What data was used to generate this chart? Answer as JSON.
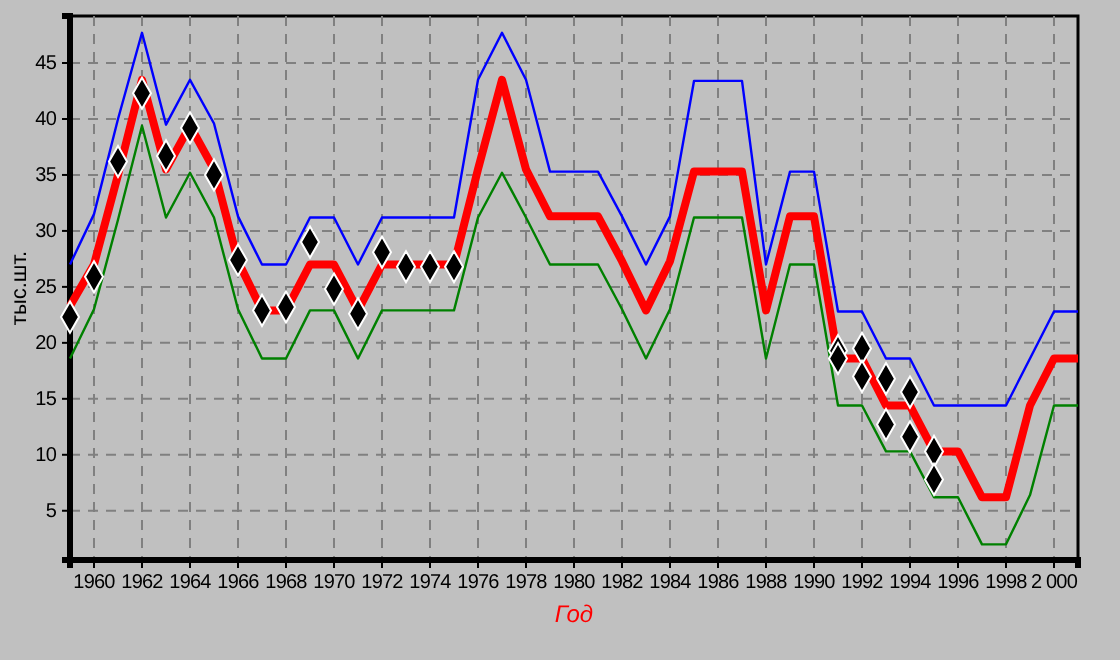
{
  "chart_data": {
    "type": "line",
    "xlabel": "Год",
    "ylabel": "тыс.шт.",
    "x": [
      1959,
      1960,
      1961,
      1962,
      1963,
      1964,
      1965,
      1966,
      1967,
      1968,
      1969,
      1970,
      1971,
      1972,
      1973,
      1974,
      1975,
      1976,
      1977,
      1978,
      1979,
      1980,
      1981,
      1982,
      1983,
      1984,
      1985,
      1986,
      1987,
      1988,
      1989,
      1990,
      1991,
      1992,
      1993,
      1994,
      1995,
      1996,
      1997,
      1998,
      1999,
      2000,
      2001
    ],
    "series": [
      {
        "color": "#0000ff",
        "values": [
          27,
          31.5,
          40,
          47.7,
          39.5,
          43.5,
          39.6,
          31.3,
          27,
          27,
          31.2,
          31.2,
          27,
          31.2,
          31.2,
          31.2,
          31.2,
          43.5,
          47.7,
          43.5,
          35.3,
          35.3,
          35.3,
          31.3,
          27,
          31.3,
          43.4,
          43.4,
          43.4,
          27,
          35.3,
          35.3,
          22.8,
          22.8,
          18.6,
          18.6,
          14.4,
          14.4,
          14.4,
          14.4,
          18.6,
          22.8,
          22.8
        ]
      },
      {
        "color": "#008000",
        "values": [
          18.6,
          23,
          31,
          39.4,
          31.2,
          35.2,
          31.2,
          23,
          18.6,
          18.6,
          22.9,
          22.9,
          18.6,
          22.9,
          22.9,
          22.9,
          22.9,
          31.2,
          35.2,
          31.2,
          27,
          27,
          27,
          23,
          18.6,
          23,
          31.2,
          31.2,
          31.2,
          18.6,
          27,
          27,
          14.4,
          14.4,
          10.3,
          10.3,
          6.2,
          6.2,
          2,
          2,
          6.4,
          14.4,
          14.4
        ]
      },
      {
        "color": "#ff0000",
        "values": [
          23.3,
          27,
          35,
          43.5,
          35.5,
          39.4,
          35.5,
          27.3,
          22.9,
          22.9,
          27,
          27,
          22.9,
          27,
          27,
          27,
          27,
          35.5,
          43.5,
          35.5,
          31.3,
          31.3,
          31.3,
          27.3,
          22.9,
          27.3,
          35.3,
          35.3,
          35.3,
          22.9,
          31.3,
          31.3,
          18.6,
          18.6,
          14.4,
          14.4,
          10.3,
          10.3,
          6.2,
          6.2,
          14.4,
          18.6,
          18.6
        ]
      },
      {
        "type": "scatter",
        "color": "#000000",
        "marker": "diamond",
        "x": [
          1959,
          1960,
          1961,
          1962,
          1963,
          1964,
          1965,
          1966,
          1967,
          1968,
          1969,
          1970,
          1971,
          1972,
          1973,
          1974,
          1975,
          1991,
          1991,
          1992,
          1992,
          1993,
          1993,
          1994,
          1994,
          1995,
          1995
        ],
        "values": [
          22.3,
          25.9,
          36.2,
          42.3,
          36.7,
          39.2,
          35,
          27.4,
          22.9,
          23.2,
          29,
          24.8,
          22.6,
          28.1,
          26.8,
          26.8,
          26.8,
          19.3,
          18.6,
          19.5,
          17,
          16.8,
          12.7,
          15.6,
          11.6,
          10.3,
          7.8
        ]
      }
    ],
    "xlim": [
      1959,
      2001
    ],
    "xticks": [
      1960,
      1962,
      1964,
      1966,
      1968,
      1970,
      1972,
      1974,
      1976,
      1978,
      1980,
      1982,
      1984,
      1986,
      1988,
      1990,
      1992,
      1994,
      1996,
      1998,
      {
        "value": 2000,
        "label": "2 000"
      }
    ],
    "ylim": [
      0.6,
      49.2
    ],
    "yticks": [
      5,
      10,
      15,
      20,
      25,
      30,
      35,
      40,
      45
    ],
    "grid": true,
    "marker": "none",
    "line_style": "solid"
  }
}
